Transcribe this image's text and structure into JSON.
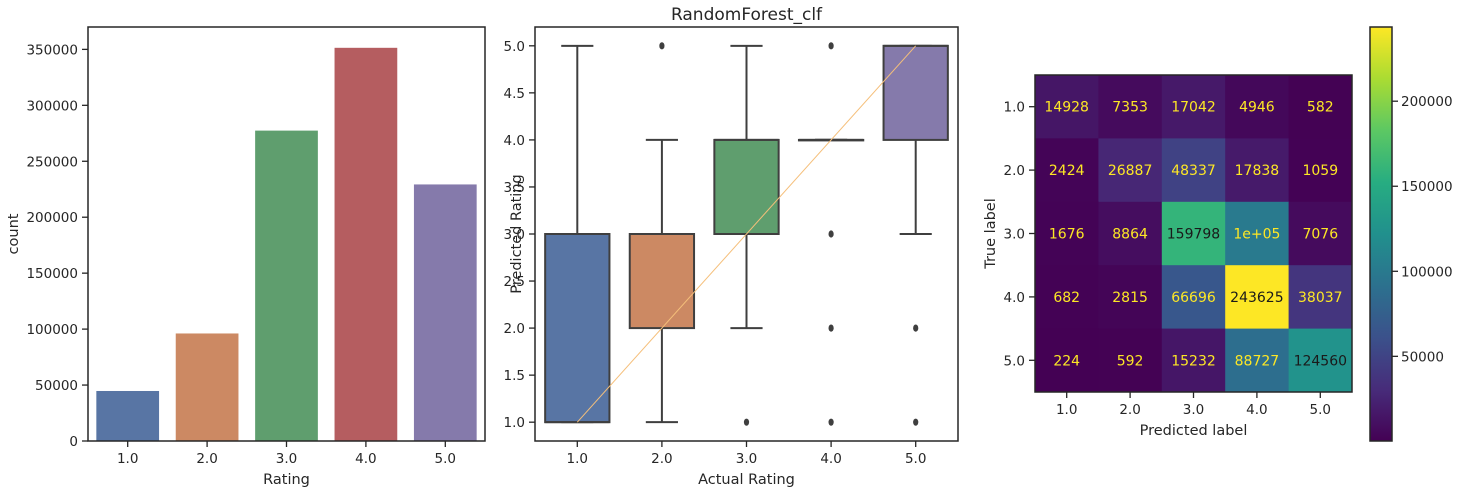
{
  "chart_data": [
    {
      "type": "bar",
      "title": "",
      "xlabel": "Rating",
      "ylabel": "count",
      "categories": [
        "1.0",
        "2.0",
        "3.0",
        "4.0",
        "5.0"
      ],
      "values": [
        44700,
        96100,
        277400,
        351400,
        229300
      ],
      "colors": [
        "#5875a4",
        "#cc8963",
        "#5f9e6e",
        "#b55d60",
        "#857aab"
      ],
      "ylim": [
        0,
        370000
      ],
      "yticks": [
        0,
        50000,
        100000,
        150000,
        200000,
        250000,
        300000,
        350000
      ],
      "ytick_labels": [
        "0",
        "50000",
        "100000",
        "150000",
        "200000",
        "250000",
        "300000",
        "350000"
      ],
      "grid": false
    },
    {
      "type": "box",
      "title": "RandomForest_clf",
      "xlabel": "Actual Rating",
      "ylabel": "Predicted Rating",
      "categories": [
        "1.0",
        "2.0",
        "3.0",
        "4.0",
        "5.0"
      ],
      "colors": [
        "#5875a4",
        "#cc8963",
        "#5f9e6e",
        "#857aab",
        "#857aab"
      ],
      "boxes": [
        {
          "whisker_low": 1.0,
          "q1": 1.0,
          "median": 1.0,
          "q3": 3.0,
          "whisker_high": 5.0,
          "outliers": []
        },
        {
          "whisker_low": 1.0,
          "q1": 2.0,
          "median": 3.0,
          "q3": 3.0,
          "whisker_high": 4.0,
          "outliers": [
            5.0
          ]
        },
        {
          "whisker_low": 2.0,
          "q1": 3.0,
          "median": 4.0,
          "q3": 4.0,
          "whisker_high": 5.0,
          "outliers": [
            1.0
          ]
        },
        {
          "whisker_low": 4.0,
          "q1": 4.0,
          "median": 4.0,
          "q3": 4.0,
          "whisker_high": 4.0,
          "outliers": [
            1.0,
            2.0,
            3.0,
            5.0
          ]
        },
        {
          "whisker_low": 3.0,
          "q1": 4.0,
          "median": 5.0,
          "q3": 5.0,
          "whisker_high": 5.0,
          "outliers": [
            1.0,
            2.0
          ]
        }
      ],
      "reference_line": {
        "from": [
          1.0,
          1.0
        ],
        "to": [
          5.0,
          5.0
        ],
        "color": "#f5bf7a"
      },
      "ylim": [
        0.8,
        5.2
      ],
      "yticks": [
        1.0,
        1.5,
        2.0,
        2.5,
        3.0,
        3.5,
        4.0,
        4.5,
        5.0
      ],
      "ytick_labels": [
        "1.0",
        "1.5",
        "2.0",
        "2.5",
        "3.0",
        "3.5",
        "4.0",
        "4.5",
        "5.0"
      ],
      "grid": false
    },
    {
      "type": "heatmap",
      "title": "",
      "xlabel": "Predicted label",
      "ylabel": "True label",
      "x_categories": [
        "1.0",
        "2.0",
        "3.0",
        "4.0",
        "5.0"
      ],
      "y_categories": [
        "1.0",
        "2.0",
        "3.0",
        "4.0",
        "5.0"
      ],
      "matrix": [
        [
          14928,
          7353,
          17042,
          4946,
          582
        ],
        [
          2424,
          26887,
          48337,
          17838,
          1059
        ],
        [
          1676,
          8864,
          159798,
          100000,
          7076
        ],
        [
          682,
          2815,
          66696,
          243625,
          38037
        ],
        [
          224,
          592,
          15232,
          88727,
          124560
        ]
      ],
      "cell_labels": [
        [
          "14928",
          "7353",
          "17042",
          "4946",
          "582"
        ],
        [
          "2424",
          "26887",
          "48337",
          "17838",
          "1059"
        ],
        [
          "1676",
          "8864",
          "159798",
          "1e+05",
          "7076"
        ],
        [
          "682",
          "2815",
          "66696",
          "243625",
          "38037"
        ],
        [
          "224",
          "592",
          "15232",
          "88727",
          "124560"
        ]
      ],
      "colormap": "viridis",
      "vmin": 224,
      "vmax": 243625,
      "colorbar_ticks": [
        50000,
        100000,
        150000,
        200000
      ],
      "colorbar_tick_labels": [
        "50000",
        "100000",
        "150000",
        "200000"
      ],
      "text_color_light": "#fde725",
      "text_color_dark": "#1a1a1a"
    }
  ]
}
